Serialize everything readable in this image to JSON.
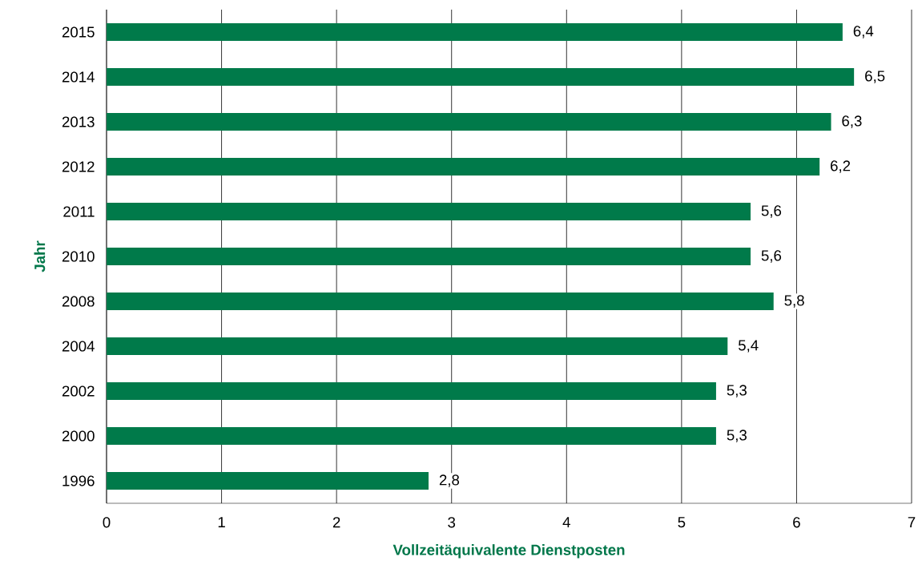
{
  "chart_data": {
    "type": "bar",
    "orientation": "horizontal",
    "categories": [
      "2015",
      "2014",
      "2013",
      "2012",
      "2011",
      "2010",
      "2008",
      "2004",
      "2002",
      "2000",
      "1996"
    ],
    "values": [
      6.4,
      6.5,
      6.3,
      6.2,
      5.6,
      5.6,
      5.8,
      5.4,
      5.3,
      5.3,
      2.8
    ],
    "value_labels": [
      "6,4",
      "6,5",
      "6,3",
      "6,2",
      "5,6",
      "5,6",
      "5,8",
      "5,4",
      "5,3",
      "5,3",
      "2,8"
    ],
    "color": "#007a4a",
    "xlabel": "Vollzeitäquivalente Dienstposten",
    "ylabel": "Jahr",
    "xlim": [
      0,
      7
    ],
    "xticks": [
      0,
      1,
      2,
      3,
      4,
      5,
      6,
      7
    ],
    "grid": "x"
  }
}
